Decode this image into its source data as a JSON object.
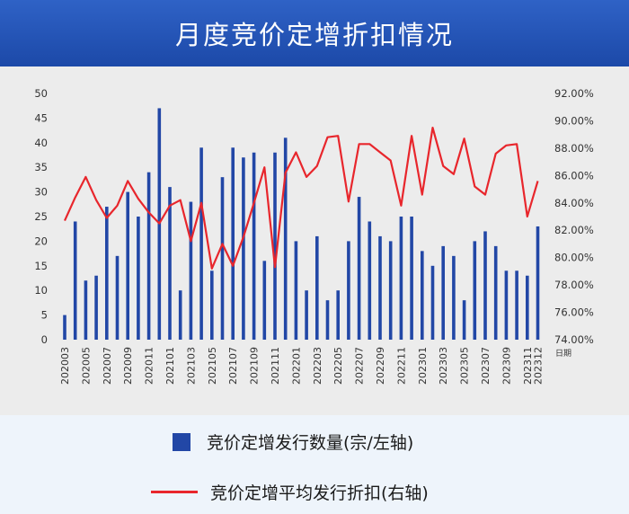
{
  "title": "月度竞价定增折扣情况",
  "legend": {
    "bars": "竞价定增发行数量(宗/左轴)",
    "line": "竞价定增平均发行折扣(右轴)"
  },
  "colors": {
    "bar": "#2247a6",
    "line": "#e8262c",
    "header": "#2352b5"
  },
  "chart_data": {
    "type": "bar+line",
    "title": "月度竞价定增折扣情况",
    "xlabel": "日期",
    "x_tick_labels": [
      "202003",
      "202005",
      "202007",
      "202009",
      "202011",
      "202101",
      "202103",
      "202105",
      "202107",
      "202109",
      "202111",
      "202201",
      "202203",
      "202205",
      "202207",
      "202209",
      "202211",
      "202301",
      "202303",
      "202305",
      "202307",
      "202309",
      "202311",
      "202312"
    ],
    "categories": [
      "202003",
      "202004",
      "202005",
      "202006",
      "202007",
      "202008",
      "202009",
      "202010",
      "202011",
      "202012",
      "202101",
      "202102",
      "202103",
      "202104",
      "202105",
      "202106",
      "202107",
      "202108",
      "202109",
      "202110",
      "202111",
      "202112",
      "202201",
      "202202",
      "202203",
      "202204",
      "202205",
      "202206",
      "202207",
      "202208",
      "202209",
      "202210",
      "202211",
      "202212",
      "202301",
      "202302",
      "202303",
      "202304",
      "202305",
      "202306",
      "202307",
      "202308",
      "202309",
      "202310",
      "202311",
      "202312"
    ],
    "left_axis": {
      "ylim": [
        0,
        50
      ],
      "ticks": [
        0,
        5,
        10,
        15,
        20,
        25,
        30,
        35,
        40,
        45,
        50
      ]
    },
    "right_axis": {
      "ylim": [
        74,
        92
      ],
      "ticks": [
        "74.00%",
        "76.00%",
        "78.00%",
        "80.00%",
        "82.00%",
        "84.00%",
        "86.00%",
        "88.00%",
        "90.00%",
        "92.00%"
      ]
    },
    "grid": false,
    "legend_position": "bottom",
    "series": [
      {
        "name": "竞价定增发行数量(宗/左轴)",
        "type": "bar",
        "axis": "left",
        "values": [
          5,
          24,
          12,
          13,
          27,
          17,
          30,
          25,
          34,
          47,
          31,
          10,
          28,
          39,
          14,
          33,
          39,
          37,
          38,
          16,
          38,
          41,
          20,
          10,
          21,
          8,
          10,
          20,
          29,
          24,
          21,
          20,
          25,
          25,
          18,
          15,
          19,
          17,
          8,
          20,
          22,
          19,
          14,
          14,
          13,
          23
        ]
      },
      {
        "name": "竞价定增平均发行折扣(右轴)",
        "type": "line",
        "axis": "right",
        "values": [
          82.7,
          84.4,
          85.9,
          84.2,
          82.9,
          83.8,
          85.6,
          84.3,
          83.3,
          82.5,
          83.8,
          84.2,
          81.2,
          84.0,
          79.2,
          81.0,
          79.4,
          81.5,
          84.0,
          86.6,
          79.3,
          86.2,
          87.7,
          85.9,
          86.7,
          88.8,
          88.9,
          84.1,
          88.3,
          88.3,
          87.7,
          87.1,
          83.8,
          88.9,
          84.6,
          89.5,
          86.7,
          86.1,
          88.7,
          85.2,
          84.6,
          87.6,
          88.2,
          88.3,
          83.0,
          85.6
        ]
      }
    ]
  }
}
